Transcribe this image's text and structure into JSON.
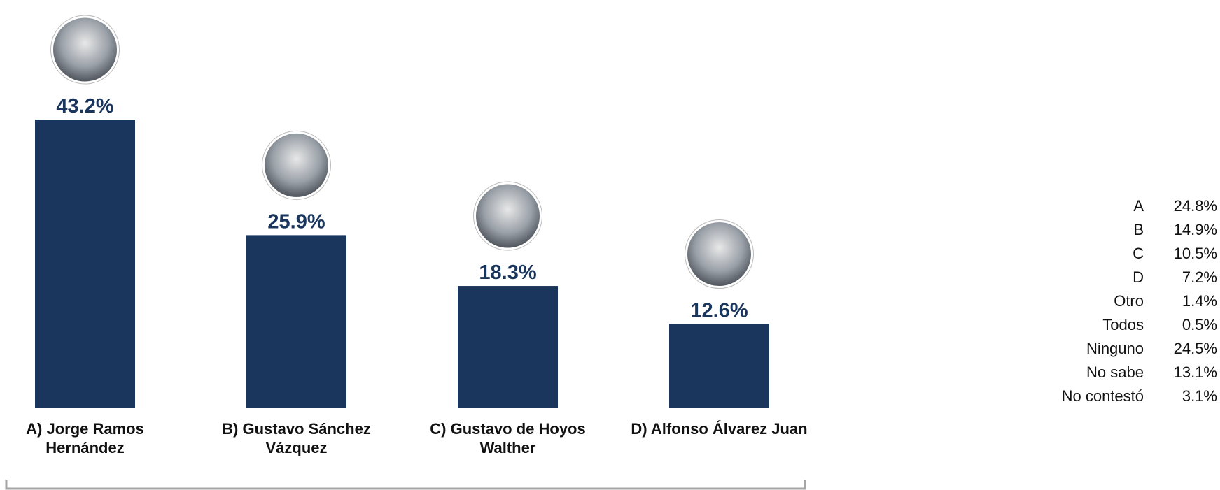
{
  "chart_data": {
    "type": "bar",
    "categories": [
      "A) Jorge Ramos\nHernández",
      "B) Gustavo Sánchez\nVázquez",
      "C) Gustavo  de Hoyos\nWalther",
      "D) Alfonso Álvarez Juan"
    ],
    "values": [
      43.2,
      25.9,
      18.3,
      12.6
    ],
    "value_labels": [
      "43.2%",
      "25.9%",
      "18.3%",
      "12.6%"
    ],
    "color": "#1b365d",
    "ylim": [
      0,
      50
    ]
  },
  "summary": {
    "rows": [
      [
        "A",
        "24.8%"
      ],
      [
        "B",
        "14.9%"
      ],
      [
        "C",
        "10.5%"
      ],
      [
        "D",
        "7.2%"
      ],
      [
        "Otro",
        "1.4%"
      ],
      [
        "Todos",
        "0.5%"
      ],
      [
        "Ninguno",
        "24.5%"
      ],
      [
        "No sabe",
        "13.1%"
      ],
      [
        "No contestó",
        "3.1%"
      ]
    ]
  }
}
